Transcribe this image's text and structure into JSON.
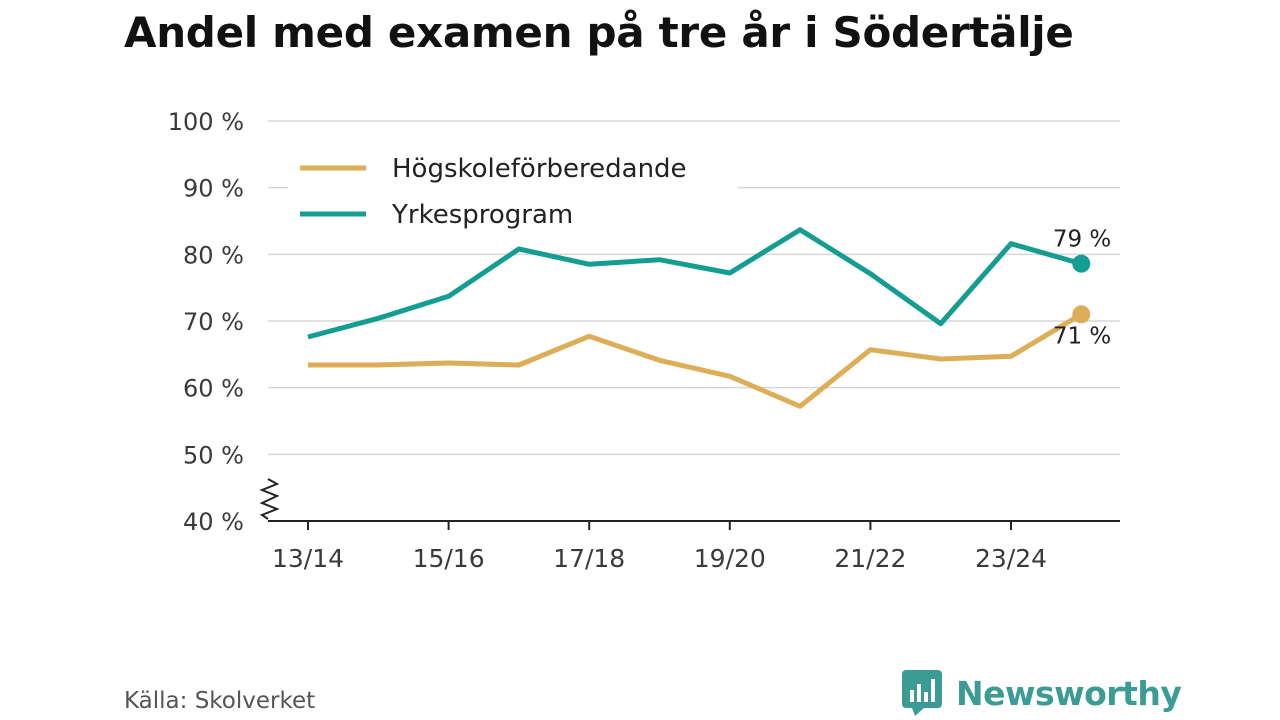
{
  "colors": {
    "hogskole": "#dcae57",
    "yrke": "#149d91",
    "brand": "#3c9c95",
    "grid": "#d7d7d7",
    "axis": "#222222"
  },
  "chart_data": {
    "type": "line",
    "title": "Andel med examen på tre år i Södertälje",
    "xlabel": "",
    "ylabel": "",
    "ylim": [
      40,
      100
    ],
    "y_ticks": [
      40,
      50,
      60,
      70,
      80,
      90,
      100
    ],
    "y_tick_labels": [
      "40 %",
      "50 %",
      "60 %",
      "70 %",
      "80 %",
      "90 %",
      "100 %"
    ],
    "categories": [
      "13/14",
      "14/15",
      "15/16",
      "16/17",
      "17/18",
      "18/19",
      "19/20",
      "20/21",
      "21/22",
      "22/23",
      "23/24",
      "24/25"
    ],
    "x_tick_labels": [
      "13/14",
      "15/16",
      "17/18",
      "19/20",
      "21/22",
      "23/24"
    ],
    "axis_break": true,
    "grid": true,
    "legend_position": "top-left",
    "series": [
      {
        "name": "Högskoleförberedande",
        "color": "#dcae57",
        "values": [
          63.4,
          63.4,
          63.7,
          63.4,
          67.7,
          64.1,
          61.7,
          57.2,
          65.7,
          64.3,
          64.7,
          71.0
        ],
        "end_label": "71 %"
      },
      {
        "name": "Yrkesprogram",
        "color": "#149d91",
        "values": [
          67.6,
          70.4,
          73.7,
          80.8,
          78.5,
          79.2,
          77.2,
          83.7,
          77.1,
          69.6,
          81.6,
          78.6
        ],
        "end_label": "79 %"
      }
    ]
  },
  "footer": {
    "source": "Källa: Skolverket",
    "brand_name": "Newsworthy"
  }
}
